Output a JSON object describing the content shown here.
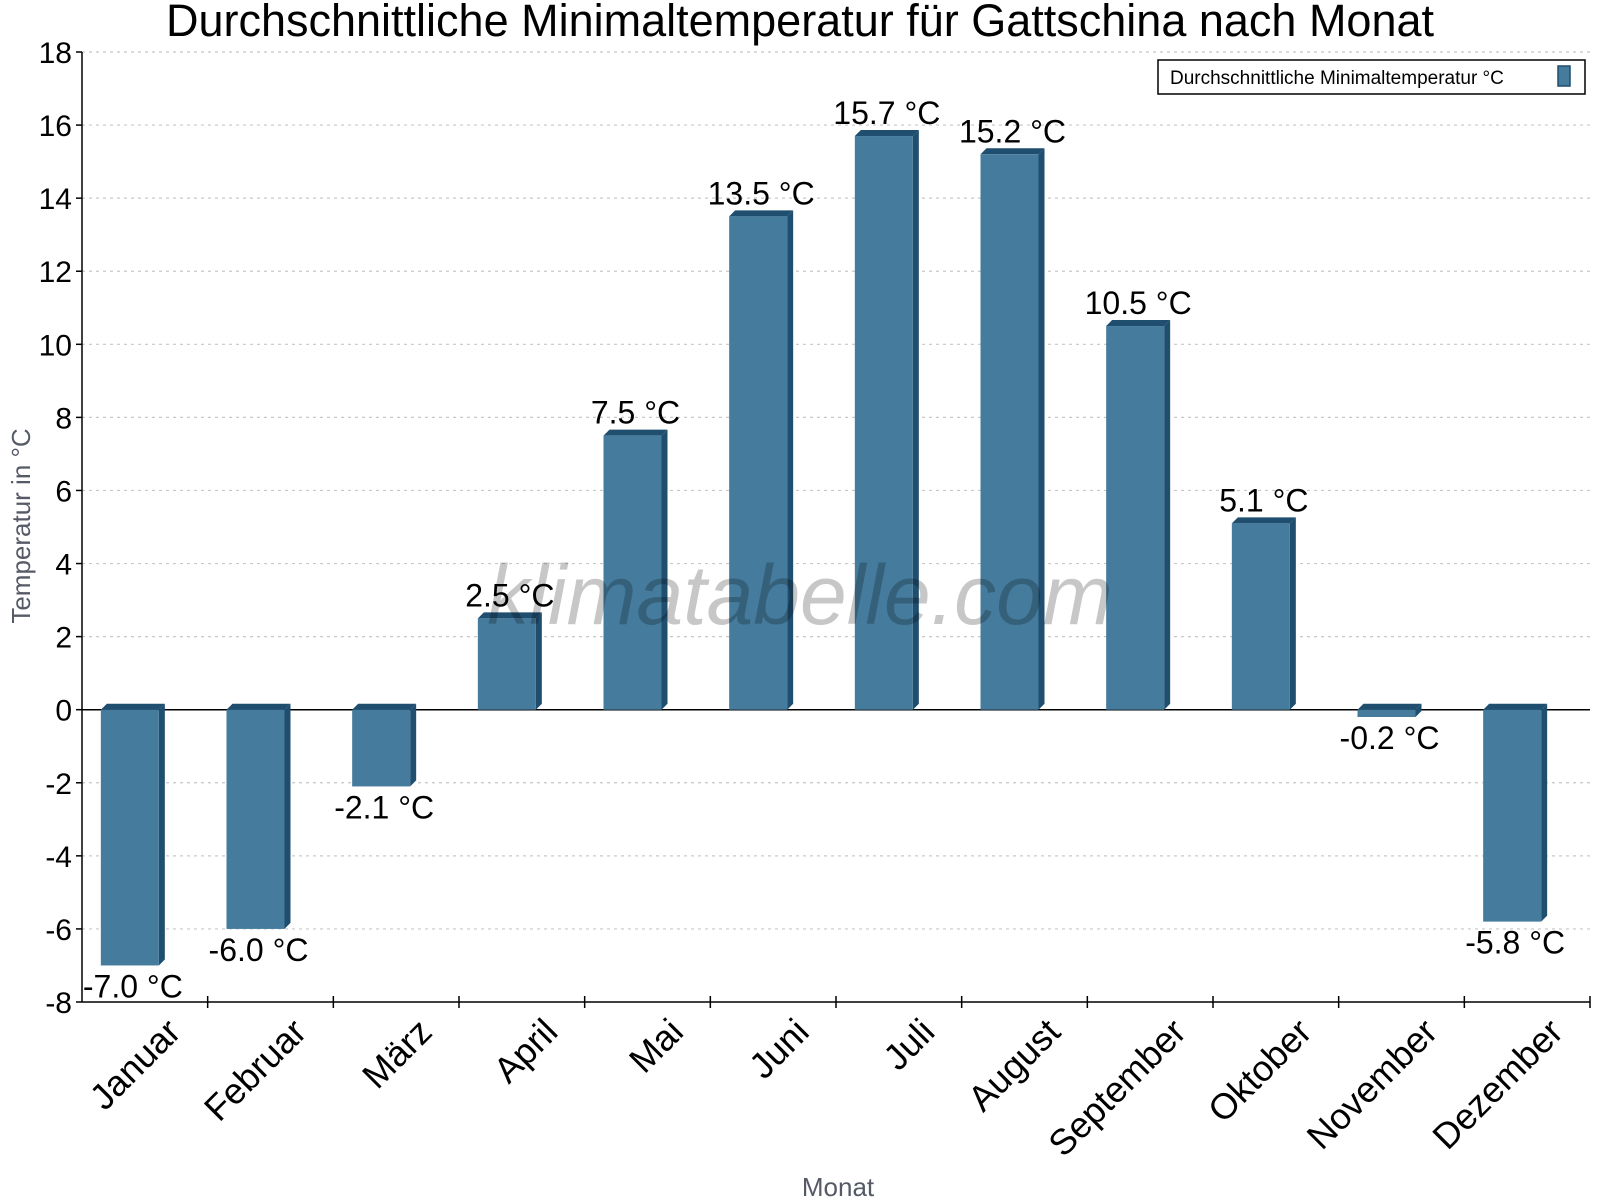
{
  "chart_data": {
    "type": "bar",
    "title": "Durchschnittliche Minimaltemperatur für Gattschina nach Monat",
    "xlabel": "Monat",
    "ylabel": "Temperatur in °C",
    "categories": [
      "Januar",
      "Februar",
      "März",
      "April",
      "Mai",
      "Juni",
      "Juli",
      "August",
      "September",
      "Oktober",
      "November",
      "Dezember"
    ],
    "series": [
      {
        "name": "Durchschnittliche Minimaltemperatur °C",
        "values": [
          -7.0,
          -6.0,
          -2.1,
          2.5,
          7.5,
          13.5,
          15.7,
          15.2,
          10.5,
          5.1,
          -0.2,
          -5.8
        ],
        "labels": [
          "-7.0 °C",
          "-6.0 °C",
          "-2.1 °C",
          "2.5 °C",
          "7.5 °C",
          "13.5 °C",
          "15.7 °C",
          "15.2 °C",
          "10.5 °C",
          "5.1 °C",
          "-0.2 °C",
          "-5.8 °C"
        ],
        "color": "#457b9d"
      }
    ],
    "ylim": [
      -8,
      18
    ],
    "yticks": [
      "18",
      "16",
      "14",
      "12",
      "10",
      "8",
      "6",
      "4",
      "2",
      "0",
      "-2",
      "-4",
      "-6",
      "-8"
    ],
    "grid": true,
    "legend": "top-right",
    "watermark": "klimatabelle.com",
    "colors": {
      "bar": "#457b9d",
      "bar_dark": "#1f4e6f",
      "grid": "#c8c8c8",
      "axis": "#000000"
    }
  }
}
